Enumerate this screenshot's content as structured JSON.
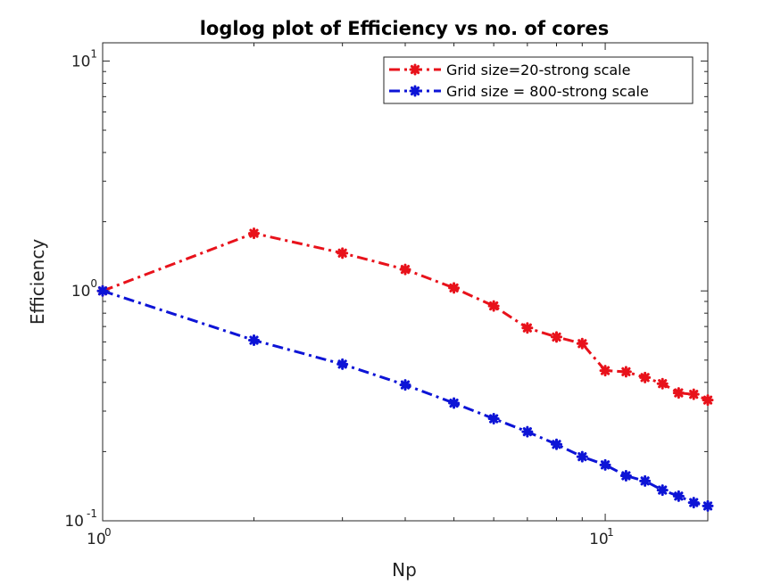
{
  "chart_data": {
    "type": "line",
    "title": "loglog plot of Efficiency vs no. of cores",
    "xlabel": "Np",
    "ylabel": "Efficiency",
    "xscale": "log",
    "yscale": "log",
    "xlim": [
      1,
      16
    ],
    "ylim": [
      0.1,
      12
    ],
    "grid": false,
    "legend_position": "top-right",
    "x_ticks": [
      {
        "value": 1,
        "base": "10",
        "exp": "0"
      },
      {
        "value": 10,
        "base": "10",
        "exp": "1"
      }
    ],
    "y_ticks": [
      {
        "value": 0.1,
        "base": "10",
        "exp": "-1"
      },
      {
        "value": 1,
        "base": "10",
        "exp": "0"
      },
      {
        "value": 10,
        "base": "10",
        "exp": "1"
      }
    ],
    "series": [
      {
        "name": "Grid size=20-strong scale",
        "color": "#e8121b",
        "x": [
          1,
          2,
          3,
          4,
          5,
          6,
          7,
          8,
          9,
          10,
          11,
          12,
          13,
          14,
          15,
          16
        ],
        "y": [
          1.0,
          1.78,
          1.46,
          1.24,
          1.03,
          0.86,
          0.69,
          0.63,
          0.59,
          0.45,
          0.445,
          0.42,
          0.395,
          0.36,
          0.355,
          0.335
        ]
      },
      {
        "name": " Grid size = 800-strong scale",
        "color": "#0d14d6",
        "x": [
          1,
          2,
          3,
          4,
          5,
          6,
          7,
          8,
          9,
          10,
          11,
          12,
          13,
          14,
          15,
          16
        ],
        "y": [
          1.0,
          0.61,
          0.48,
          0.39,
          0.325,
          0.278,
          0.244,
          0.215,
          0.19,
          0.175,
          0.157,
          0.149,
          0.136,
          0.128,
          0.12,
          0.116
        ]
      }
    ]
  }
}
